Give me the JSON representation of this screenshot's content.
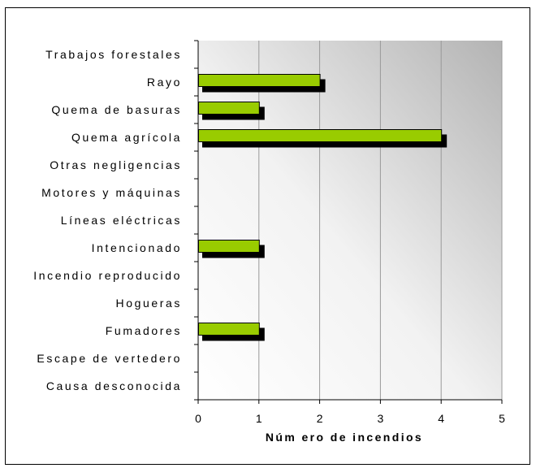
{
  "chart_data": {
    "type": "bar",
    "orientation": "horizontal",
    "categories": [
      "Trabajos forestales",
      "Rayo",
      "Quema de basuras",
      "Quema agrícola",
      "Otras negligencias",
      "Motores y máquinas",
      "Líneas eléctricas",
      "Intencionado",
      "Incendio reproducido",
      "Hogueras",
      "Fumadores",
      "Escape de vertedero",
      "Causa desconocida"
    ],
    "values": [
      0,
      2,
      1,
      4,
      0,
      0,
      0,
      1,
      0,
      0,
      1,
      0,
      0
    ],
    "title": "",
    "xlabel": "Núm ero de incendios",
    "ylabel": "",
    "xlim": [
      0,
      5
    ],
    "xticks": [
      0,
      1,
      2,
      3,
      4,
      5
    ],
    "grid": true,
    "legend": "none",
    "colors": {
      "bar_fill": "#99cc00",
      "bar_stroke": "#000000",
      "bar_shadow": "#000000",
      "gridline": "#999999",
      "plot_bg_light": "#ffffff",
      "plot_bg_dark": "#b3b3b3"
    }
  }
}
